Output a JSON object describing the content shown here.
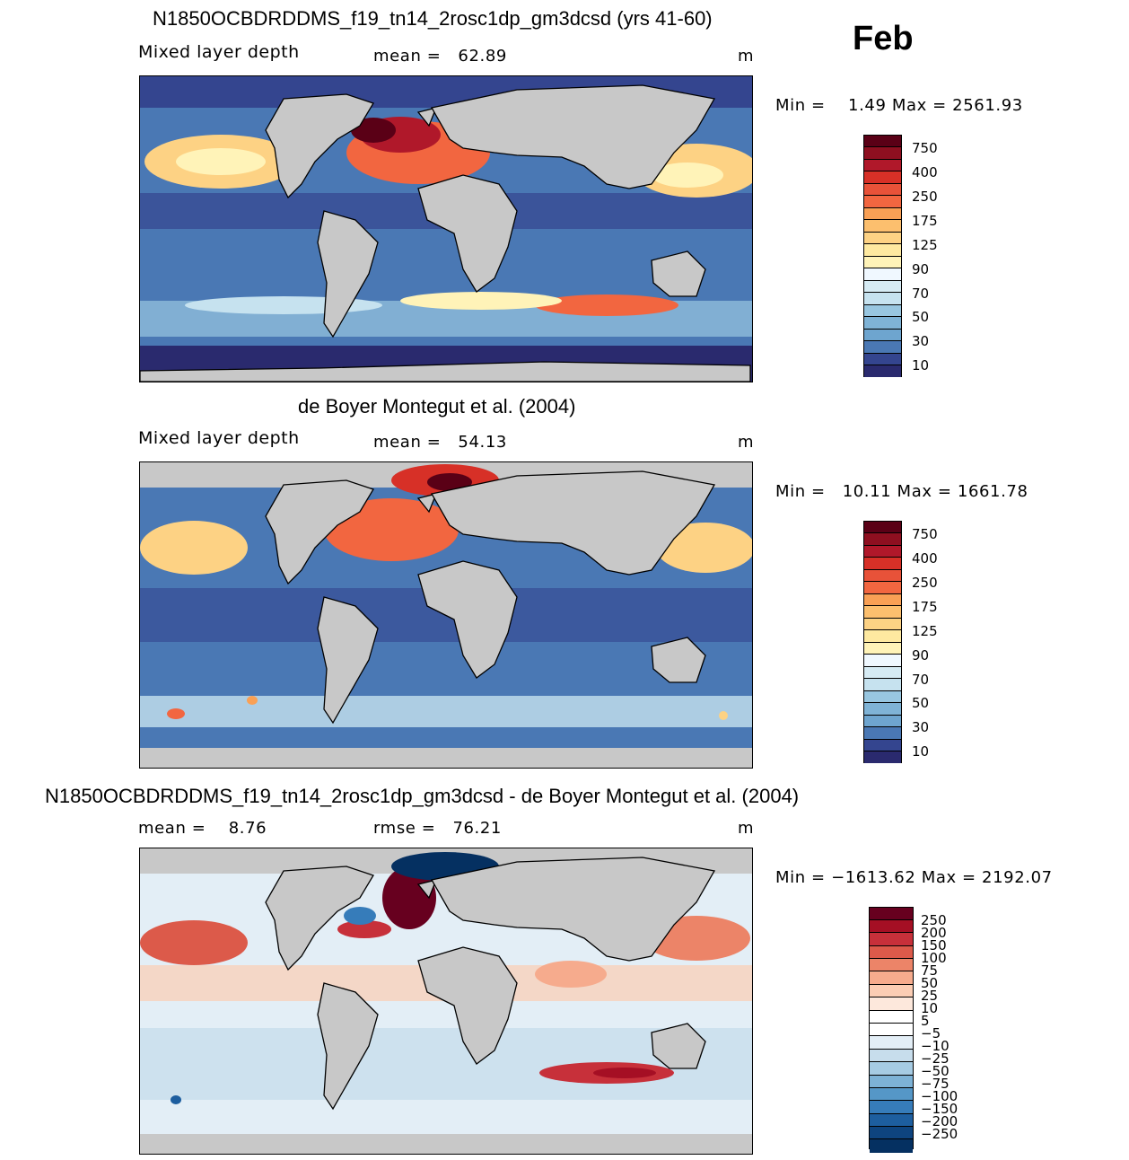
{
  "month": "Feb",
  "panels": [
    {
      "title": "N1850OCBDRDDMS_f19_tn14_2rosc1dp_gm3dcsd (yrs 41-60)",
      "variable": "Mixed layer depth",
      "stat1": "mean =   62.89",
      "stat2": "",
      "units": "m",
      "minmax": "Min =    1.49 Max = 2561.93",
      "colorbar_labels": [
        "750",
        "400",
        "250",
        "175",
        "125",
        "90",
        "70",
        "50",
        "30",
        "10"
      ]
    },
    {
      "title": "de Boyer Montegut et al. (2004)",
      "variable": "Mixed layer depth",
      "stat1": "mean =   54.13",
      "stat2": "",
      "units": "m",
      "minmax": "Min =   10.11 Max = 1661.78",
      "colorbar_labels": [
        "750",
        "400",
        "250",
        "175",
        "125",
        "90",
        "70",
        "50",
        "30",
        "10"
      ]
    },
    {
      "title": "N1850OCBDRDDMS_f19_tn14_2rosc1dp_gm3dcsd - de Boyer Montegut et al. (2004)",
      "variable": "mean =    8.76",
      "stat1": "rmse =   76.21",
      "stat2": "",
      "units": "m",
      "minmax": "Min = −1613.62 Max = 2192.07",
      "colorbar_labels": [
        "250",
        "200",
        "150",
        "100",
        "75",
        "50",
        "25",
        "10",
        "5",
        "−5",
        "−10",
        "−25",
        "−50",
        "−75",
        "−100",
        "−150",
        "−200",
        "−250"
      ]
    }
  ],
  "colors": {
    "mld_scale": [
      "#5a0016",
      "#b0182a",
      "#d73027",
      "#f26640",
      "#f9a055",
      "#fdd284",
      "#fff3b8",
      "#f0f8ff",
      "#c6e2ef",
      "#98c6e0",
      "#6ea5cf",
      "#4a78b4",
      "#34458f",
      "#2a2a6e"
    ],
    "diff_scale": [
      "#67001f",
      "#a50f24",
      "#c7303a",
      "#dc5a4a",
      "#ec8468",
      "#f6ab8d",
      "#fbcdb4",
      "#fde8dc",
      "#ffffff",
      "#e3eef6",
      "#c7ddec",
      "#a6cbe3",
      "#7db2d6",
      "#5597c7",
      "#367cba",
      "#1d5e9f",
      "#0e447f",
      "#053061"
    ],
    "land": "#c8c8c8",
    "background": "#ffffff"
  }
}
